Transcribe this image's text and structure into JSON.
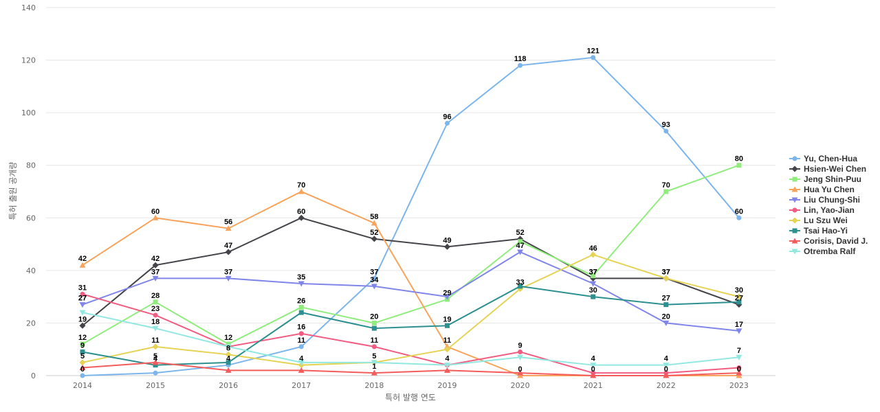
{
  "chart_data": {
    "type": "line",
    "title": "",
    "xlabel": "특허 발행 연도",
    "ylabel": "특허 출원 공개량",
    "x": [
      2014,
      2015,
      2016,
      2017,
      2018,
      2019,
      2020,
      2021,
      2022,
      2023
    ],
    "ylim": [
      0,
      140
    ],
    "yticks": [
      0,
      20,
      40,
      60,
      80,
      100,
      120,
      140
    ],
    "grid": true,
    "legend_position": "right",
    "series": [
      {
        "name": "Yu, Chen-Hua",
        "color": "#7cb5ec",
        "marker": "circle",
        "values": [
          0,
          1,
          4,
          11,
          37,
          96,
          118,
          121,
          93,
          60
        ]
      },
      {
        "name": "Hsien-Wei Chen",
        "color": "#434348",
        "marker": "diamond",
        "values": [
          19,
          42,
          47,
          60,
          52,
          49,
          52,
          37,
          37,
          27
        ]
      },
      {
        "name": "Jeng Shin-Puu",
        "color": "#90ed7d",
        "marker": "square",
        "values": [
          12,
          28,
          12,
          26,
          20,
          29,
          51,
          38,
          70,
          80
        ]
      },
      {
        "name": "Hua Yu Chen",
        "color": "#f7a35c",
        "marker": "triangle",
        "values": [
          42,
          60,
          56,
          70,
          58,
          11,
          0,
          0,
          0,
          0
        ]
      },
      {
        "name": "Liu Chung-Shi",
        "color": "#8085e9",
        "marker": "triangle-down",
        "values": [
          27,
          37,
          37,
          35,
          34,
          30,
          47,
          35,
          20,
          17
        ]
      },
      {
        "name": "Lin, Yao-Jian",
        "color": "#f15c80",
        "marker": "circle",
        "values": [
          31,
          23,
          11,
          16,
          11,
          4,
          9,
          1,
          1,
          3
        ]
      },
      {
        "name": "Lu Szu Wei",
        "color": "#e4d354",
        "marker": "diamond",
        "values": [
          5,
          11,
          8,
          4,
          5,
          10,
          33,
          46,
          37,
          30
        ]
      },
      {
        "name": "Tsai Hao-Yi",
        "color": "#2b908f",
        "marker": "square",
        "values": [
          9,
          4,
          5,
          24,
          18,
          19,
          34,
          30,
          27,
          28
        ]
      },
      {
        "name": "Corisis, David J.",
        "color": "#f45b5b",
        "marker": "triangle",
        "values": [
          3,
          5,
          2,
          2,
          1,
          2,
          1,
          0,
          0,
          1
        ]
      },
      {
        "name": "Otremba Ralf",
        "color": "#91e8e1",
        "marker": "triangle-down",
        "values": [
          24,
          18,
          11,
          5,
          5,
          4,
          7,
          4,
          4,
          7
        ]
      }
    ],
    "data_labels": [
      {
        "x": 2014,
        "y": 0,
        "text": "0"
      },
      {
        "x": 2015,
        "y": 4,
        "text": "4"
      },
      {
        "x": 2016,
        "y": 4,
        "text": "4"
      },
      {
        "x": 2017,
        "y": 11,
        "text": "11"
      },
      {
        "x": 2018,
        "y": 37,
        "text": "37"
      },
      {
        "x": 2019,
        "y": 96,
        "text": "96"
      },
      {
        "x": 2020,
        "y": 118,
        "text": "118"
      },
      {
        "x": 2021,
        "y": 121,
        "text": "121"
      },
      {
        "x": 2022,
        "y": 93,
        "text": "93"
      },
      {
        "x": 2023,
        "y": 60,
        "text": "60"
      },
      {
        "x": 2014,
        "y": 19,
        "text": "19"
      },
      {
        "x": 2015,
        "y": 42,
        "text": "42"
      },
      {
        "x": 2016,
        "y": 47,
        "text": "47"
      },
      {
        "x": 2017,
        "y": 60,
        "text": "60"
      },
      {
        "x": 2018,
        "y": 52,
        "text": "52"
      },
      {
        "x": 2019,
        "y": 49,
        "text": "49"
      },
      {
        "x": 2020,
        "y": 52,
        "text": "52"
      },
      {
        "x": 2021,
        "y": 37,
        "text": "37"
      },
      {
        "x": 2022,
        "y": 37,
        "text": "37"
      },
      {
        "x": 2023,
        "y": 27,
        "text": "27"
      },
      {
        "x": 2014,
        "y": 12,
        "text": "12"
      },
      {
        "x": 2015,
        "y": 28,
        "text": "28"
      },
      {
        "x": 2016,
        "y": 12,
        "text": "12"
      },
      {
        "x": 2017,
        "y": 26,
        "text": "26"
      },
      {
        "x": 2018,
        "y": 20,
        "text": "20"
      },
      {
        "x": 2019,
        "y": 29,
        "text": "29"
      },
      {
        "x": 2022,
        "y": 70,
        "text": "70"
      },
      {
        "x": 2023,
        "y": 80,
        "text": "80"
      },
      {
        "x": 2014,
        "y": 42,
        "text": "42"
      },
      {
        "x": 2015,
        "y": 60,
        "text": "60"
      },
      {
        "x": 2016,
        "y": 56,
        "text": "56"
      },
      {
        "x": 2017,
        "y": 70,
        "text": "70"
      },
      {
        "x": 2018,
        "y": 58,
        "text": "58"
      },
      {
        "x": 2019,
        "y": 11,
        "text": "11"
      },
      {
        "x": 2020,
        "y": 0,
        "text": "0"
      },
      {
        "x": 2021,
        "y": 0,
        "text": "0"
      },
      {
        "x": 2022,
        "y": 0,
        "text": "0"
      },
      {
        "x": 2023,
        "y": 0,
        "text": "0"
      },
      {
        "x": 2014,
        "y": 27,
        "text": "27"
      },
      {
        "x": 2015,
        "y": 37,
        "text": "37"
      },
      {
        "x": 2016,
        "y": 37,
        "text": "37"
      },
      {
        "x": 2017,
        "y": 35,
        "text": "35"
      },
      {
        "x": 2018,
        "y": 34,
        "text": "34"
      },
      {
        "x": 2020,
        "y": 47,
        "text": "47"
      },
      {
        "x": 2022,
        "y": 20,
        "text": "20"
      },
      {
        "x": 2023,
        "y": 17,
        "text": "17"
      },
      {
        "x": 2014,
        "y": 31,
        "text": "31"
      },
      {
        "x": 2015,
        "y": 23,
        "text": "23"
      },
      {
        "x": 2016,
        "y": 8,
        "text": "8"
      },
      {
        "x": 2017,
        "y": 16,
        "text": "16"
      },
      {
        "x": 2018,
        "y": 11,
        "text": "11"
      },
      {
        "x": 2019,
        "y": 4,
        "text": "4"
      },
      {
        "x": 2020,
        "y": 9,
        "text": "9"
      },
      {
        "x": 2014,
        "y": 5,
        "text": "5"
      },
      {
        "x": 2015,
        "y": 11,
        "text": "11"
      },
      {
        "x": 2021,
        "y": 46,
        "text": "46"
      },
      {
        "x": 2023,
        "y": 30,
        "text": "30"
      },
      {
        "x": 2020,
        "y": 33,
        "text": "33"
      },
      {
        "x": 2021,
        "y": 30,
        "text": "30"
      },
      {
        "x": 2022,
        "y": 27,
        "text": "27"
      },
      {
        "x": 2014,
        "y": 9,
        "text": "9"
      },
      {
        "x": 2015,
        "y": 5,
        "text": "5"
      },
      {
        "x": 2018,
        "y": 1,
        "text": "1"
      },
      {
        "x": 2019,
        "y": 19,
        "text": "19"
      },
      {
        "x": 2014,
        "y": 27,
        "text": "27"
      },
      {
        "x": 2015,
        "y": 18,
        "text": "18"
      },
      {
        "x": 2017,
        "y": 4,
        "text": "4"
      },
      {
        "x": 2018,
        "y": 5,
        "text": "5"
      },
      {
        "x": 2021,
        "y": 4,
        "text": "4"
      },
      {
        "x": 2022,
        "y": 4,
        "text": "4"
      },
      {
        "x": 2023,
        "y": 7,
        "text": "7"
      },
      {
        "x": 2021,
        "y": 37,
        "text": "37"
      },
      {
        "x": 2022,
        "y": 37,
        "text": "37"
      },
      {
        "x": 2023,
        "y": 0,
        "text": "0"
      }
    ]
  }
}
